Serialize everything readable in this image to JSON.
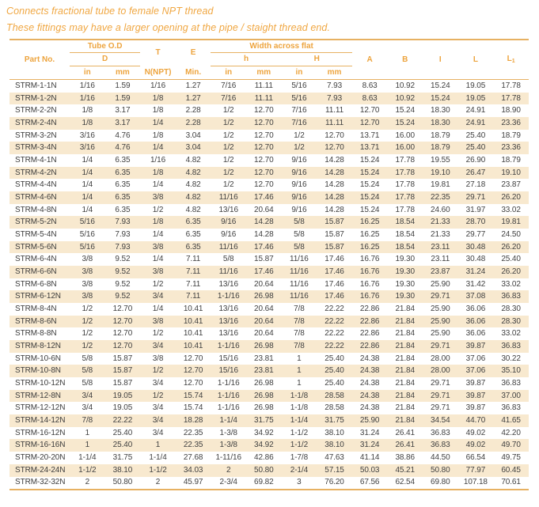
{
  "intro": {
    "line1": "Connects fractional tube to female NPT thread",
    "line2": "These fittings may have a larger opening at the pipe / staight thread end."
  },
  "colors": {
    "accent_orange": "#f0a742",
    "rule_gold": "#e7b162",
    "row_stripe": "#f8e9cf",
    "text_dark": "#414141"
  },
  "table": {
    "headers": {
      "part_no": "Part No.",
      "tube_od": "Tube O.D",
      "d": "D",
      "t": "T",
      "e": "E",
      "width_across_flat": "Width across flat",
      "h_lower": "h",
      "h_upper": "H",
      "unit_in": "in",
      "unit_mm": "mm",
      "n_npt": "N(NPT)",
      "min": "Min.",
      "a": "A",
      "b": "B",
      "i": "I",
      "l": "L",
      "l1_base": "L",
      "l1_sub": "1"
    },
    "rows": [
      [
        "STRM-1-1N",
        "1/16",
        "1.59",
        "1/16",
        "1.27",
        "7/16",
        "11.11",
        "5/16",
        "7.93",
        "8.63",
        "10.92",
        "15.24",
        "19.05",
        "17.78"
      ],
      [
        "STRM-1-2N",
        "1/16",
        "1.59",
        "1/8",
        "1.27",
        "7/16",
        "11.11",
        "5/16",
        "7.93",
        "8.63",
        "10.92",
        "15.24",
        "19.05",
        "17.78"
      ],
      [
        "STRM-2-2N",
        "1/8",
        "3.17",
        "1/8",
        "2.28",
        "1/2",
        "12.70",
        "7/16",
        "11.11",
        "12.70",
        "15.24",
        "18.30",
        "24.91",
        "18.90"
      ],
      [
        "STRM-2-4N",
        "1/8",
        "3.17",
        "1/4",
        "2.28",
        "1/2",
        "12.70",
        "7/16",
        "11.11",
        "12.70",
        "15.24",
        "18.30",
        "24.91",
        "23.36"
      ],
      [
        "STRM-3-2N",
        "3/16",
        "4.76",
        "1/8",
        "3.04",
        "1/2",
        "12.70",
        "1/2",
        "12.70",
        "13.71",
        "16.00",
        "18.79",
        "25.40",
        "18.79"
      ],
      [
        "STRM-3-4N",
        "3/16",
        "4.76",
        "1/4",
        "3.04",
        "1/2",
        "12.70",
        "1/2",
        "12.70",
        "13.71",
        "16.00",
        "18.79",
        "25.40",
        "23.36"
      ],
      [
        "STRM-4-1N",
        "1/4",
        "6.35",
        "1/16",
        "4.82",
        "1/2",
        "12.70",
        "9/16",
        "14.28",
        "15.24",
        "17.78",
        "19.55",
        "26.90",
        "18.79"
      ],
      [
        "STRM-4-2N",
        "1/4",
        "6.35",
        "1/8",
        "4.82",
        "1/2",
        "12.70",
        "9/16",
        "14.28",
        "15.24",
        "17.78",
        "19.10",
        "26.47",
        "19.10"
      ],
      [
        "STRM-4-4N",
        "1/4",
        "6.35",
        "1/4",
        "4.82",
        "1/2",
        "12.70",
        "9/16",
        "14.28",
        "15.24",
        "17.78",
        "19.81",
        "27.18",
        "23.87"
      ],
      [
        "STRM-4-6N",
        "1/4",
        "6.35",
        "3/8",
        "4.82",
        "11/16",
        "17.46",
        "9/16",
        "14.28",
        "15.24",
        "17.78",
        "22.35",
        "29.71",
        "26.20"
      ],
      [
        "STRM-4-8N",
        "1/4",
        "6.35",
        "1/2",
        "4.82",
        "13/16",
        "20.64",
        "9/16",
        "14.28",
        "15.24",
        "17.78",
        "24.60",
        "31.97",
        "33.02"
      ],
      [
        "STRM-5-2N",
        "5/16",
        "7.93",
        "1/8",
        "6.35",
        "9/16",
        "14.28",
        "5/8",
        "15.87",
        "16.25",
        "18.54",
        "21.33",
        "28.70",
        "19.81"
      ],
      [
        "STRM-5-4N",
        "5/16",
        "7.93",
        "1/4",
        "6.35",
        "9/16",
        "14.28",
        "5/8",
        "15.87",
        "16.25",
        "18.54",
        "21.33",
        "29.77",
        "24.50"
      ],
      [
        "STRM-5-6N",
        "5/16",
        "7.93",
        "3/8",
        "6.35",
        "11/16",
        "17.46",
        "5/8",
        "15.87",
        "16.25",
        "18.54",
        "23.11",
        "30.48",
        "26.20"
      ],
      [
        "STRM-6-4N",
        "3/8",
        "9.52",
        "1/4",
        "7.11",
        "5/8",
        "15.87",
        "11/16",
        "17.46",
        "16.76",
        "19.30",
        "23.11",
        "30.48",
        "25.40"
      ],
      [
        "STRM-6-6N",
        "3/8",
        "9.52",
        "3/8",
        "7.11",
        "11/16",
        "17.46",
        "11/16",
        "17.46",
        "16.76",
        "19.30",
        "23.87",
        "31.24",
        "26.20"
      ],
      [
        "STRM-6-8N",
        "3/8",
        "9.52",
        "1/2",
        "7.11",
        "13/16",
        "20.64",
        "11/16",
        "17.46",
        "16.76",
        "19.30",
        "25.90",
        "31.42",
        "33.02"
      ],
      [
        "STRM-6-12N",
        "3/8",
        "9.52",
        "3/4",
        "7.11",
        "1-1/16",
        "26.98",
        "11/16",
        "17.46",
        "16.76",
        "19.30",
        "29.71",
        "37.08",
        "36.83"
      ],
      [
        "STRM-8-4N",
        "1/2",
        "12.70",
        "1/4",
        "10.41",
        "13/16",
        "20.64",
        "7/8",
        "22.22",
        "22.86",
        "21.84",
        "25.90",
        "36.06",
        "28.30"
      ],
      [
        "STRM-8-6N",
        "1/2",
        "12.70",
        "3/8",
        "10.41",
        "13/16",
        "20.64",
        "7/8",
        "22.22",
        "22.86",
        "21.84",
        "25.90",
        "36.06",
        "28.30"
      ],
      [
        "STRM-8-8N",
        "1/2",
        "12.70",
        "1/2",
        "10.41",
        "13/16",
        "20.64",
        "7/8",
        "22.22",
        "22.86",
        "21.84",
        "25.90",
        "36.06",
        "33.02"
      ],
      [
        "STRM-8-12N",
        "1/2",
        "12.70",
        "3/4",
        "10.41",
        "1-1/16",
        "26.98",
        "7/8",
        "22.22",
        "22.86",
        "21.84",
        "29.71",
        "39.87",
        "36.83"
      ],
      [
        "STRM-10-6N",
        "5/8",
        "15.87",
        "3/8",
        "12.70",
        "15/16",
        "23.81",
        "1",
        "25.40",
        "24.38",
        "21.84",
        "28.00",
        "37.06",
        "30.22"
      ],
      [
        "STRM-10-8N",
        "5/8",
        "15.87",
        "1/2",
        "12.70",
        "15/16",
        "23.81",
        "1",
        "25.40",
        "24.38",
        "21.84",
        "28.00",
        "37.06",
        "35.10"
      ],
      [
        "STRM-10-12N",
        "5/8",
        "15.87",
        "3/4",
        "12.70",
        "1-1/16",
        "26.98",
        "1",
        "25.40",
        "24.38",
        "21.84",
        "29.71",
        "39.87",
        "36.83"
      ],
      [
        "STRM-12-8N",
        "3/4",
        "19.05",
        "1/2",
        "15.74",
        "1-1/16",
        "26.98",
        "1-1/8",
        "28.58",
        "24.38",
        "21.84",
        "29.71",
        "39.87",
        "37.00"
      ],
      [
        "STRM-12-12N",
        "3/4",
        "19.05",
        "3/4",
        "15.74",
        "1-1/16",
        "26.98",
        "1-1/8",
        "28.58",
        "24.38",
        "21.84",
        "29.71",
        "39.87",
        "36.83"
      ],
      [
        "STRM-14-12N",
        "7/8",
        "22.22",
        "3/4",
        "18.28",
        "1-1/4",
        "31.75",
        "1-1/4",
        "31.75",
        "25.90",
        "21.84",
        "34.54",
        "44.70",
        "41.65"
      ],
      [
        "STRM-16-12N",
        "1",
        "25.40",
        "3/4",
        "22.35",
        "1-3/8",
        "34.92",
        "1-1/2",
        "38.10",
        "31.24",
        "26.41",
        "36.83",
        "49.02",
        "42.20"
      ],
      [
        "STRM-16-16N",
        "1",
        "25.40",
        "1",
        "22.35",
        "1-3/8",
        "34.92",
        "1-1/2",
        "38.10",
        "31.24",
        "26.41",
        "36.83",
        "49.02",
        "49.70"
      ],
      [
        "STRM-20-20N",
        "1-1/4",
        "31.75",
        "1-1/4",
        "27.68",
        "1-11/16",
        "42.86",
        "1-7/8",
        "47.63",
        "41.14",
        "38.86",
        "44.50",
        "66.54",
        "49.75"
      ],
      [
        "STRM-24-24N",
        "1-1/2",
        "38.10",
        "1-1/2",
        "34.03",
        "2",
        "50.80",
        "2-1/4",
        "57.15",
        "50.03",
        "45.21",
        "50.80",
        "77.97",
        "60.45"
      ],
      [
        "STRM-32-32N",
        "2",
        "50.80",
        "2",
        "45.97",
        "2-3/4",
        "69.82",
        "3",
        "76.20",
        "67.56",
        "62.54",
        "69.80",
        "107.18",
        "70.61"
      ]
    ]
  }
}
